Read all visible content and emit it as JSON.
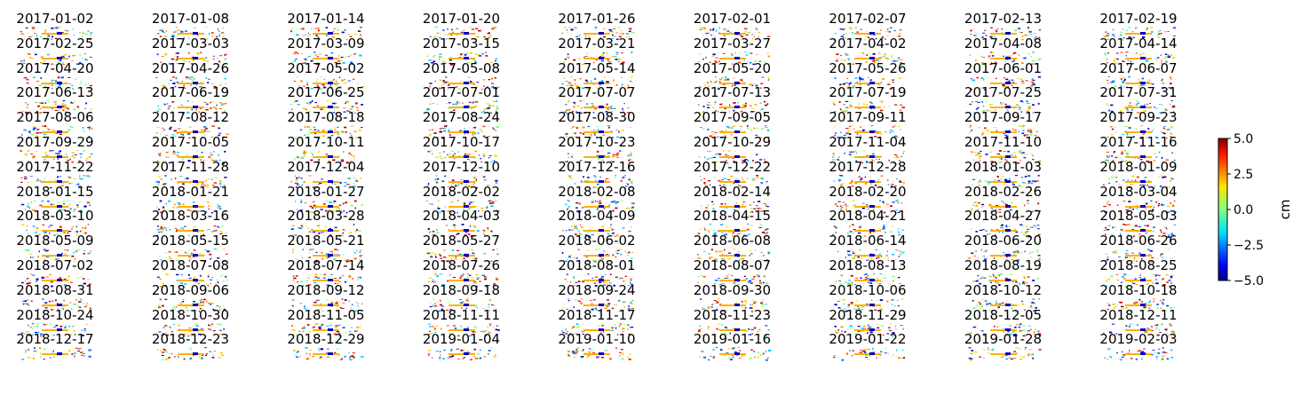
{
  "chart_data": {
    "type": "heatmap",
    "panels": [
      "2017-01-02",
      "2017-01-08",
      "2017-01-14",
      "2017-01-20",
      "2017-01-26",
      "2017-02-01",
      "2017-02-07",
      "2017-02-13",
      "2017-02-19",
      "2017-02-25",
      "2017-03-03",
      "2017-03-09",
      "2017-03-15",
      "2017-03-21",
      "2017-03-27",
      "2017-04-02",
      "2017-04-08",
      "2017-04-14",
      "2017-04-20",
      "2017-04-26",
      "2017-05-02",
      "2017-05-08",
      "2017-05-14",
      "2017-05-20",
      "2017-05-26",
      "2017-06-01",
      "2017-06-07",
      "2017-06-13",
      "2017-06-19",
      "2017-06-25",
      "2017-07-01",
      "2017-07-07",
      "2017-07-13",
      "2017-07-19",
      "2017-07-25",
      "2017-07-31",
      "2017-08-06",
      "2017-08-12",
      "2017-08-18",
      "2017-08-24",
      "2017-08-30",
      "2017-09-05",
      "2017-09-11",
      "2017-09-17",
      "2017-09-23",
      "2017-09-29",
      "2017-10-05",
      "2017-10-11",
      "2017-10-17",
      "2017-10-23",
      "2017-10-29",
      "2017-11-04",
      "2017-11-10",
      "2017-11-16",
      "2017-11-22",
      "2017-11-28",
      "2017-12-04",
      "2017-12-10",
      "2017-12-16",
      "2017-12-22",
      "2017-12-28",
      "2018-01-03",
      "2018-01-09",
      "2018-01-15",
      "2018-01-21",
      "2018-01-27",
      "2018-02-02",
      "2018-02-08",
      "2018-02-14",
      "2018-02-20",
      "2018-02-26",
      "2018-03-04",
      "2018-03-10",
      "2018-03-16",
      "2018-03-28",
      "2018-04-03",
      "2018-04-09",
      "2018-04-15",
      "2018-04-21",
      "2018-04-27",
      "2018-05-03",
      "2018-05-09",
      "2018-05-15",
      "2018-05-21",
      "2018-05-27",
      "2018-06-02",
      "2018-06-08",
      "2018-06-14",
      "2018-06-20",
      "2018-06-26",
      "2018-07-02",
      "2018-07-08",
      "2018-07-14",
      "2018-07-26",
      "2018-08-01",
      "2018-08-07",
      "2018-08-13",
      "2018-08-19",
      "2018-08-25",
      "2018-08-31",
      "2018-09-06",
      "2018-09-12",
      "2018-09-18",
      "2018-09-24",
      "2018-09-30",
      "2018-10-06",
      "2018-10-12",
      "2018-10-18",
      "2018-10-24",
      "2018-10-30",
      "2018-11-05",
      "2018-11-11",
      "2018-11-17",
      "2018-11-23",
      "2018-11-29",
      "2018-12-05",
      "2018-12-11",
      "2018-12-17",
      "2018-12-23",
      "2018-12-29",
      "2019-01-04",
      "2019-01-10",
      "2019-01-16",
      "2019-01-22",
      "2019-01-28",
      "2019-02-03"
    ],
    "columns": 9,
    "colorbar": {
      "label": "cm",
      "range": [
        -5.0,
        5.0
      ],
      "ticks": [
        "5.0",
        "2.5",
        "0.0",
        "−2.5",
        "−5.0"
      ],
      "colormap": "jet"
    }
  }
}
